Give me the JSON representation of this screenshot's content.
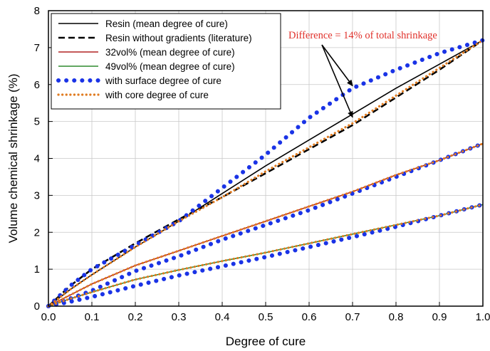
{
  "chart_data": {
    "type": "line",
    "title": "",
    "xlabel": "Degree of cure",
    "ylabel": "Volume chemical shrinkage (%)",
    "xlim": [
      0.0,
      1.0
    ],
    "ylim": [
      0,
      8
    ],
    "x_ticks": [
      "0.0",
      "0.1",
      "0.2",
      "0.3",
      "0.4",
      "0.5",
      "0.6",
      "0.7",
      "0.8",
      "0.9",
      "1.0"
    ],
    "y_ticks": [
      "0",
      "1",
      "2",
      "3",
      "4",
      "5",
      "6",
      "7",
      "8"
    ],
    "grid": true,
    "legend_position": "top-left",
    "series": [
      {
        "name": "Resin (mean degree of cure)",
        "color": "#000000",
        "style": "solid",
        "x": [
          0,
          0.05,
          0.1,
          0.2,
          0.3,
          0.4,
          0.5,
          0.6,
          0.7,
          0.8,
          0.9,
          1.0
        ],
        "y": [
          0,
          0.45,
          0.85,
          1.6,
          2.3,
          3.05,
          3.8,
          4.5,
          5.2,
          5.9,
          6.55,
          7.2
        ]
      },
      {
        "name": "Resin without gradients (literature)",
        "color": "#000000",
        "style": "dashed",
        "x": [
          0,
          0.05,
          0.1,
          0.2,
          0.3,
          0.4,
          0.5,
          0.6,
          0.7,
          0.8,
          0.9,
          1.0
        ],
        "y": [
          0,
          0.55,
          1.0,
          1.7,
          2.35,
          2.95,
          3.6,
          4.25,
          4.9,
          5.65,
          6.4,
          7.2
        ]
      },
      {
        "name": "32vol% (mean degree of cure)",
        "color": "#b22222",
        "style": "solid",
        "x": [
          0,
          0.05,
          0.1,
          0.2,
          0.3,
          0.4,
          0.5,
          0.6,
          0.7,
          0.8,
          0.9,
          1.0
        ],
        "y": [
          0,
          0.3,
          0.6,
          1.1,
          1.5,
          1.9,
          2.3,
          2.7,
          3.1,
          3.55,
          3.95,
          4.4
        ]
      },
      {
        "name": "49vol% (mean degree of cure)",
        "color": "#2e8b2e",
        "style": "solid",
        "x": [
          0,
          0.05,
          0.1,
          0.2,
          0.3,
          0.4,
          0.5,
          0.6,
          0.7,
          0.8,
          0.9,
          1.0
        ],
        "y": [
          0,
          0.2,
          0.38,
          0.72,
          0.98,
          1.22,
          1.45,
          1.7,
          1.95,
          2.2,
          2.45,
          2.75
        ]
      },
      {
        "name": "with surface degree of cure",
        "color": "#1a33e6",
        "style": "dotted",
        "x": [
          0,
          0.05,
          0.1,
          0.2,
          0.3,
          0.4,
          0.5,
          0.6,
          0.7,
          0.8,
          0.9,
          1.0
        ],
        "y": [
          0,
          0.55,
          1.0,
          1.65,
          2.3,
          3.2,
          4.1,
          5.1,
          5.9,
          6.4,
          6.85,
          7.2
        ]
      },
      {
        "name": "with surface degree of cure",
        "color": "#1a33e6",
        "style": "dotted",
        "x": [
          0,
          0.05,
          0.1,
          0.2,
          0.3,
          0.4,
          0.5,
          0.6,
          0.7,
          0.8,
          0.9,
          1.0
        ],
        "y": [
          0,
          0.2,
          0.42,
          0.95,
          1.35,
          1.8,
          2.2,
          2.6,
          3.05,
          3.5,
          3.95,
          4.4
        ]
      },
      {
        "name": "with surface degree of cure",
        "color": "#1a33e6",
        "style": "dotted",
        "x": [
          0,
          0.05,
          0.1,
          0.2,
          0.3,
          0.4,
          0.5,
          0.6,
          0.7,
          0.8,
          0.9,
          1.0
        ],
        "y": [
          0,
          0.12,
          0.25,
          0.55,
          0.83,
          1.08,
          1.33,
          1.6,
          1.87,
          2.15,
          2.45,
          2.75
        ]
      },
      {
        "name": "with core degree of cure",
        "color": "#e07b20",
        "style": "dotted",
        "x": [
          0,
          0.05,
          0.1,
          0.2,
          0.3,
          0.4,
          0.5,
          0.6,
          0.7,
          0.8,
          0.9,
          1.0
        ],
        "y": [
          0,
          0.45,
          0.85,
          1.6,
          2.3,
          2.95,
          3.65,
          4.3,
          4.95,
          5.7,
          6.45,
          7.2
        ]
      },
      {
        "name": "with core degree of cure",
        "color": "#e07b20",
        "style": "dotted",
        "x": [
          0,
          0.05,
          0.1,
          0.2,
          0.3,
          0.4,
          0.5,
          0.6,
          0.7,
          0.8,
          0.9,
          1.0
        ],
        "y": [
          0,
          0.3,
          0.6,
          1.1,
          1.5,
          1.9,
          2.3,
          2.7,
          3.1,
          3.55,
          3.95,
          4.4
        ]
      },
      {
        "name": "with core degree of cure",
        "color": "#e07b20",
        "style": "dotted",
        "x": [
          0,
          0.05,
          0.1,
          0.2,
          0.3,
          0.4,
          0.5,
          0.6,
          0.7,
          0.8,
          0.9,
          1.0
        ],
        "y": [
          0,
          0.2,
          0.38,
          0.72,
          0.98,
          1.22,
          1.45,
          1.7,
          1.95,
          2.2,
          2.45,
          2.75
        ]
      }
    ],
    "annotations": [
      {
        "text": "Difference = 14% of total shrinkage",
        "color": "#e0302a",
        "arrow_targets": [
          [
            0.7,
            5.85
          ],
          [
            0.7,
            5.0
          ]
        ]
      }
    ]
  }
}
